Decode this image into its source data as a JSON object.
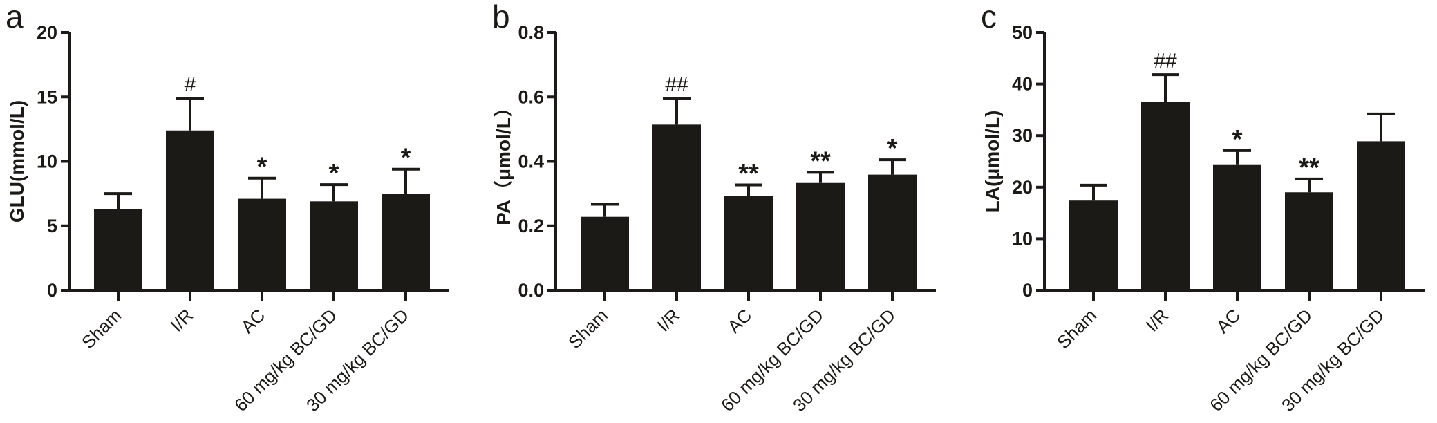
{
  "chart_data": [
    {
      "type": "bar",
      "panel_label": "a",
      "ylabel": "GLU(mmol/L)",
      "ylim": [
        0,
        20
      ],
      "yticks": [
        0,
        5,
        10,
        15,
        20
      ],
      "categories": [
        "Sham",
        "I/R",
        "AC",
        "60 mg/kg BC/GD",
        "30 mg/kg BC/GD"
      ],
      "values": [
        6.3,
        12.4,
        7.1,
        6.9,
        7.5
      ],
      "error_upper": [
        7.5,
        14.9,
        8.7,
        8.2,
        9.4
      ],
      "annotations": [
        "",
        "#",
        "*",
        "*",
        "*"
      ],
      "bar_color": "#1c1a17"
    },
    {
      "type": "bar",
      "panel_label": "b",
      "ylabel": "PA（μmol/L）",
      "ylim": [
        0,
        0.8
      ],
      "yticks": [
        "0.0",
        "0.2",
        "0.4",
        "0.6",
        "0.8"
      ],
      "categories": [
        "Sham",
        "I/R",
        "AC",
        "60 mg/kg BC/GD",
        "30 mg/kg BC/GD"
      ],
      "values": [
        0.228,
        0.514,
        0.293,
        0.333,
        0.359
      ],
      "error_upper": [
        0.267,
        0.596,
        0.327,
        0.366,
        0.405
      ],
      "annotations": [
        "",
        "##",
        "**",
        "**",
        "*"
      ],
      "bar_color": "#1c1a17"
    },
    {
      "type": "bar",
      "panel_label": "c",
      "ylabel": "LA(μmol/L)",
      "ylim": [
        0,
        50
      ],
      "yticks": [
        0,
        10,
        20,
        30,
        40,
        50
      ],
      "categories": [
        "Sham",
        "I/R",
        "AC",
        "60 mg/kg BC/GD",
        "30 mg/kg BC/GD"
      ],
      "values": [
        17.4,
        36.5,
        24.3,
        19.0,
        28.9
      ],
      "error_upper": [
        20.4,
        41.8,
        27.1,
        21.6,
        34.2
      ],
      "annotations": [
        "",
        "##",
        "*",
        "**",
        ""
      ],
      "bar_color": "#1c1a17"
    }
  ]
}
